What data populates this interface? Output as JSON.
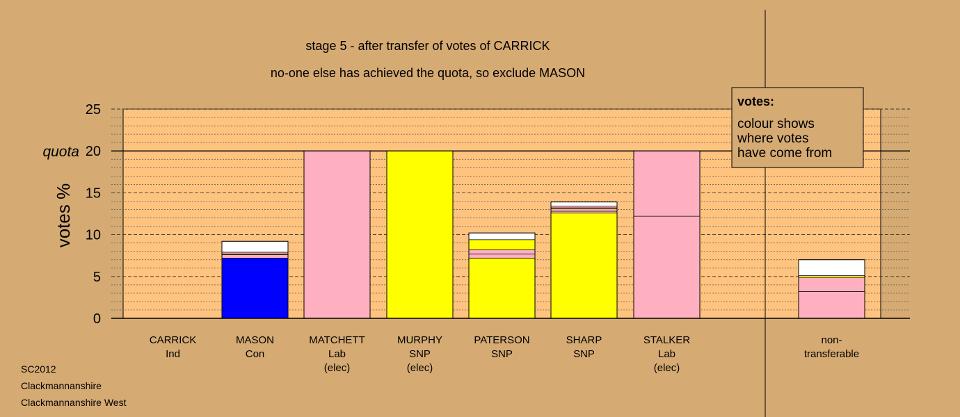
{
  "title_line1": "stage 5 - after transfer of votes of CARRICK",
  "title_line2": "no-one else has achieved the quota, so exclude MASON",
  "footer": [
    "SC2012",
    "Clackmannanshire",
    "Clackmannanshire West"
  ],
  "legend": {
    "heading": "votes:",
    "lines": [
      "colour shows",
      "where votes",
      "have come from"
    ]
  },
  "colors": {
    "background": "#d5aa73",
    "plot_area": "#fdc37f",
    "Con": "#0000ff",
    "Lab": "#ffb0c0",
    "SNP": "#ffff00",
    "Ind": "#ffffff",
    "other": "#ffffff"
  },
  "chart_data": {
    "type": "bar",
    "stacked": true,
    "ylabel": "votes %",
    "ylim": [
      0,
      25
    ],
    "yticks": [
      0,
      5,
      10,
      15,
      20,
      25
    ],
    "ytick_labels": [
      "0",
      "5",
      "10",
      "15",
      "20",
      "25"
    ],
    "quota": 20,
    "quota_label": "quota",
    "grid": "dotted minor lines every 1, dashed major lines every 5",
    "categories": [
      {
        "lines": [
          "CARRICK",
          "Ind"
        ],
        "total": 0,
        "segments": []
      },
      {
        "lines": [
          "MASON",
          "Con"
        ],
        "total": 9.2,
        "segments": [
          {
            "source": "Con",
            "color": "#0000ff",
            "value": 7.2
          },
          {
            "source": "Lab",
            "color": "#ffb0c0",
            "value": 0.4
          },
          {
            "source": "SNP",
            "color": "#ffff00",
            "value": 0.1
          },
          {
            "source": "Lab",
            "color": "#ffb0c0",
            "value": 0.2
          },
          {
            "source": "Ind",
            "color": "#ffffff",
            "value": 1.3
          }
        ]
      },
      {
        "lines": [
          "MATCHETT",
          "Lab",
          "(elec)"
        ],
        "total": 20,
        "segments": [
          {
            "source": "Lab",
            "color": "#ffb0c0",
            "value": 20
          }
        ]
      },
      {
        "lines": [
          "MURPHY",
          "SNP",
          "(elec)"
        ],
        "total": 20,
        "segments": [
          {
            "source": "SNP",
            "color": "#ffff00",
            "value": 20
          }
        ]
      },
      {
        "lines": [
          "PATERSON",
          "SNP"
        ],
        "total": 10.2,
        "segments": [
          {
            "source": "SNP",
            "color": "#ffff00",
            "value": 7.2
          },
          {
            "source": "Lab",
            "color": "#ffb0c0",
            "value": 0.5
          },
          {
            "source": "Lab",
            "color": "#ffb0c0",
            "value": 0.5
          },
          {
            "source": "SNP",
            "color": "#ffff00",
            "value": 1.2
          },
          {
            "source": "Ind",
            "color": "#ffffff",
            "value": 0.8
          }
        ]
      },
      {
        "lines": [
          "SHARP",
          "SNP"
        ],
        "total": 13.9,
        "segments": [
          {
            "source": "SNP",
            "color": "#ffff00",
            "value": 12.6
          },
          {
            "source": "Lab",
            "color": "#ffb0c0",
            "value": 0.2
          },
          {
            "source": "Lab",
            "color": "#ffb0c0",
            "value": 0.3
          },
          {
            "source": "SNP",
            "color": "#ffff00",
            "value": 0.1
          },
          {
            "source": "Lab",
            "color": "#ffb0c0",
            "value": 0.2
          },
          {
            "source": "Ind",
            "color": "#ffffff",
            "value": 0.5
          }
        ]
      },
      {
        "lines": [
          "STALKER",
          "Lab",
          "(elec)"
        ],
        "total": 20,
        "segments": [
          {
            "source": "Lab",
            "color": "#ffb0c0",
            "value": 12.2
          },
          {
            "source": "Lab",
            "color": "#ffb0c0",
            "value": 7.8
          }
        ]
      },
      {
        "lines": [
          "non-",
          "transferable"
        ],
        "total": 7.0,
        "separated": true,
        "segments": [
          {
            "source": "Lab",
            "color": "#ffb0c0",
            "value": 3.2
          },
          {
            "source": "Lab",
            "color": "#ffb0c0",
            "value": 1.7
          },
          {
            "source": "SNP",
            "color": "#ffff00",
            "value": 0.2
          },
          {
            "source": "Ind",
            "color": "#ffffff",
            "value": 1.9
          }
        ]
      }
    ]
  }
}
